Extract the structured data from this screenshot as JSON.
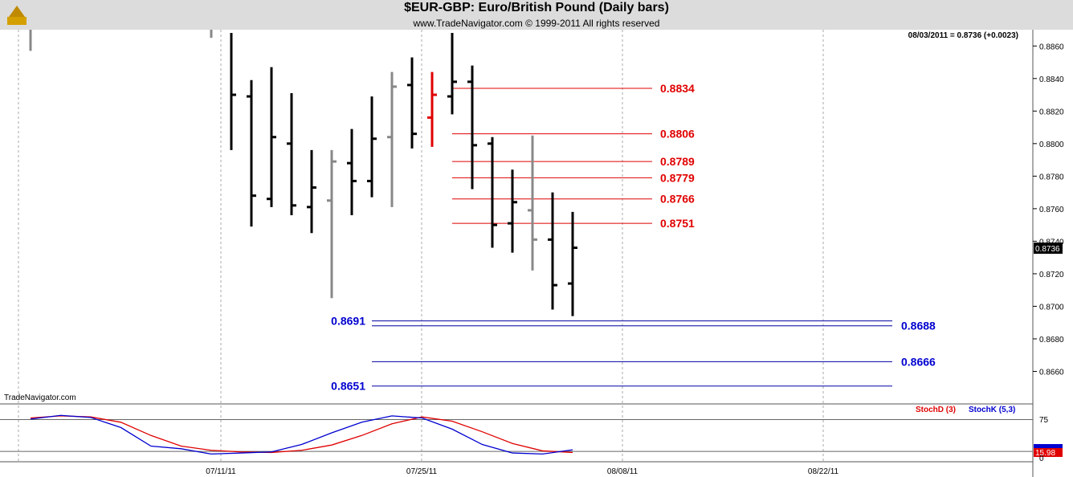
{
  "header": {
    "title": "$EUR-GBP:  Euro/British Pound  (Daily bars)",
    "subtitle": "www.TradeNavigator.com © 1999-2011 All rights reserved"
  },
  "status_line": "08/03/2011 = 0.8736 (+0.0023)",
  "watermark": "TradeNavigator.com",
  "last_price_label": "0.8736",
  "stoch_value_label": "15.98",
  "colors": {
    "up": "#000000",
    "grey": "#888888",
    "highlight": "#e00000",
    "resistance": "#e00000",
    "support": "#0000a0",
    "stochD": "#e00000",
    "stochK": "#0000d0"
  },
  "chart_data": {
    "type": "ohlc",
    "price_axis": {
      "min": 0.864,
      "max": 0.887,
      "ticks": [
        "0.8660",
        "0.8680",
        "0.8700",
        "0.8720",
        "0.8740",
        "0.8760",
        "0.8780",
        "0.8800",
        "0.8820",
        "0.8840",
        "0.8860"
      ]
    },
    "date_ticks": [
      "07/11/11",
      "07/25/11",
      "08/08/11",
      "08/22/11"
    ],
    "bars": [
      {
        "x": 1,
        "o": null,
        "h": 0.887,
        "l": 0.8857,
        "c": null,
        "color": "grey"
      },
      {
        "x": 10,
        "o": null,
        "h": 0.8872,
        "l": 0.8865,
        "c": null,
        "color": "grey"
      },
      {
        "x": 11,
        "o": null,
        "h": 0.8868,
        "l": 0.8796,
        "c": 0.883,
        "color": "black"
      },
      {
        "x": 12,
        "o": 0.8829,
        "h": 0.8839,
        "l": 0.8749,
        "c": 0.8768,
        "color": "black"
      },
      {
        "x": 13,
        "o": 0.8766,
        "h": 0.8847,
        "l": 0.8761,
        "c": 0.8804,
        "color": "black"
      },
      {
        "x": 14,
        "o": 0.88,
        "h": 0.8831,
        "l": 0.8756,
        "c": 0.8762,
        "color": "black"
      },
      {
        "x": 15,
        "o": 0.8761,
        "h": 0.8796,
        "l": 0.8745,
        "c": 0.8773,
        "color": "black"
      },
      {
        "x": 16,
        "o": 0.8765,
        "h": 0.8796,
        "l": 0.8705,
        "c": 0.8789,
        "color": "grey"
      },
      {
        "x": 17,
        "o": 0.8788,
        "h": 0.8809,
        "l": 0.8756,
        "c": 0.8777,
        "color": "black"
      },
      {
        "x": 18,
        "o": 0.8777,
        "h": 0.8829,
        "l": 0.8767,
        "c": 0.8803,
        "color": "black"
      },
      {
        "x": 19,
        "o": 0.8804,
        "h": 0.8844,
        "l": 0.8761,
        "c": 0.8835,
        "color": "grey"
      },
      {
        "x": 20,
        "o": 0.8836,
        "h": 0.8853,
        "l": 0.8797,
        "c": 0.8806,
        "color": "black"
      },
      {
        "x": 21,
        "o": 0.8816,
        "h": 0.8844,
        "l": 0.8798,
        "c": 0.883,
        "color": "red"
      },
      {
        "x": 22,
        "o": 0.8829,
        "h": 0.8868,
        "l": 0.8818,
        "c": 0.8838,
        "color": "black"
      },
      {
        "x": 23,
        "o": 0.8838,
        "h": 0.8848,
        "l": 0.8772,
        "c": 0.8799,
        "color": "black"
      },
      {
        "x": 24,
        "o": 0.88,
        "h": 0.8804,
        "l": 0.8736,
        "c": 0.875,
        "color": "black"
      },
      {
        "x": 25,
        "o": 0.8751,
        "h": 0.8784,
        "l": 0.8733,
        "c": 0.8764,
        "color": "black"
      },
      {
        "x": 26,
        "o": 0.8759,
        "h": 0.8805,
        "l": 0.8722,
        "c": 0.8741,
        "color": "grey"
      },
      {
        "x": 27,
        "o": 0.8741,
        "h": 0.877,
        "l": 0.8698,
        "c": 0.8713,
        "color": "black"
      },
      {
        "x": 28,
        "o": 0.8714,
        "h": 0.8758,
        "l": 0.8694,
        "c": 0.8736,
        "color": "black"
      }
    ],
    "resistance_levels": [
      {
        "value": 0.8834,
        "label": "0.8834"
      },
      {
        "value": 0.8806,
        "label": "0.8806"
      },
      {
        "value": 0.8789,
        "label": "0.8789"
      },
      {
        "value": 0.8779,
        "label": "0.8779"
      },
      {
        "value": 0.8766,
        "label": "0.8766"
      },
      {
        "value": 0.8751,
        "label": "0.8751"
      }
    ],
    "support_levels": [
      {
        "value": 0.8691,
        "label": "0.8691",
        "side": "left"
      },
      {
        "value": 0.8688,
        "label": "0.8688",
        "side": "right"
      },
      {
        "value": 0.8666,
        "label": "0.8666",
        "side": "right"
      },
      {
        "value": 0.8651,
        "label": "0.8651",
        "side": "left"
      }
    ],
    "stochastic": {
      "legend": [
        "StochD (3)",
        "StochK (5,3)"
      ],
      "axis_ticks": [
        "75",
        "0"
      ],
      "stochD": [
        78,
        82,
        80,
        70,
        45,
        25,
        17,
        14,
        13,
        17,
        27,
        45,
        67,
        80,
        72,
        52,
        30,
        16,
        13
      ],
      "stochK": [
        76,
        83,
        79,
        60,
        25,
        20,
        10,
        12,
        14,
        28,
        50,
        70,
        82,
        78,
        57,
        28,
        12,
        10,
        18
      ]
    }
  }
}
